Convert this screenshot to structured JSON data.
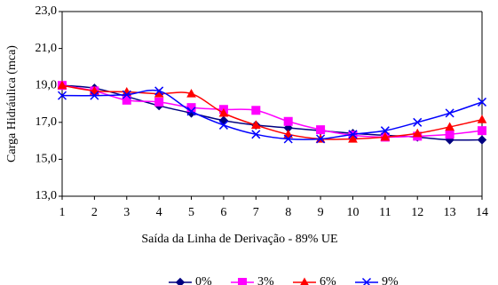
{
  "chart_data": {
    "type": "line",
    "x_label": "Saída da Linha de Derivação - 89% UE",
    "y_label": "Carga Hidráulica (mca)",
    "x": [
      1,
      2,
      3,
      4,
      5,
      6,
      7,
      8,
      9,
      10,
      11,
      12,
      13,
      14
    ],
    "xlim": [
      1,
      14
    ],
    "xticks": [
      1,
      2,
      3,
      4,
      5,
      6,
      7,
      8,
      9,
      10,
      11,
      12,
      13,
      14
    ],
    "ylim": [
      13,
      23
    ],
    "yticks": [
      {
        "value": 13,
        "label": "13,0"
      },
      {
        "value": 15,
        "label": "15,0"
      },
      {
        "value": 17,
        "label": "17,0"
      },
      {
        "value": 19,
        "label": "19,0"
      },
      {
        "value": 21,
        "label": "21,0"
      },
      {
        "value": 23,
        "label": "23,0"
      }
    ],
    "grid": false,
    "smooth": true,
    "legend": "bottom",
    "series": [
      {
        "name": "0%",
        "color": "#000080",
        "marker": "diamond",
        "values": [
          19.0,
          18.85,
          18.4,
          17.9,
          17.5,
          17.1,
          16.85,
          16.7,
          16.55,
          16.4,
          16.3,
          16.2,
          16.05,
          16.05
        ]
      },
      {
        "name": "3%",
        "color": "#ff00ff",
        "marker": "square",
        "values": [
          19.0,
          18.7,
          18.2,
          18.1,
          17.8,
          17.7,
          17.65,
          17.05,
          16.6,
          16.3,
          16.2,
          16.25,
          16.35,
          16.55
        ]
      },
      {
        "name": "6%",
        "color": "#ff0000",
        "marker": "triangle",
        "values": [
          19.0,
          18.7,
          18.65,
          18.55,
          18.55,
          17.5,
          16.85,
          16.35,
          16.1,
          16.1,
          16.2,
          16.4,
          16.75,
          17.15
        ]
      },
      {
        "name": "9%",
        "color": "#0000ff",
        "marker": "x",
        "values": [
          18.45,
          18.45,
          18.5,
          18.7,
          17.6,
          16.85,
          16.35,
          16.1,
          16.1,
          16.35,
          16.55,
          17.0,
          17.5,
          18.1
        ]
      }
    ]
  }
}
